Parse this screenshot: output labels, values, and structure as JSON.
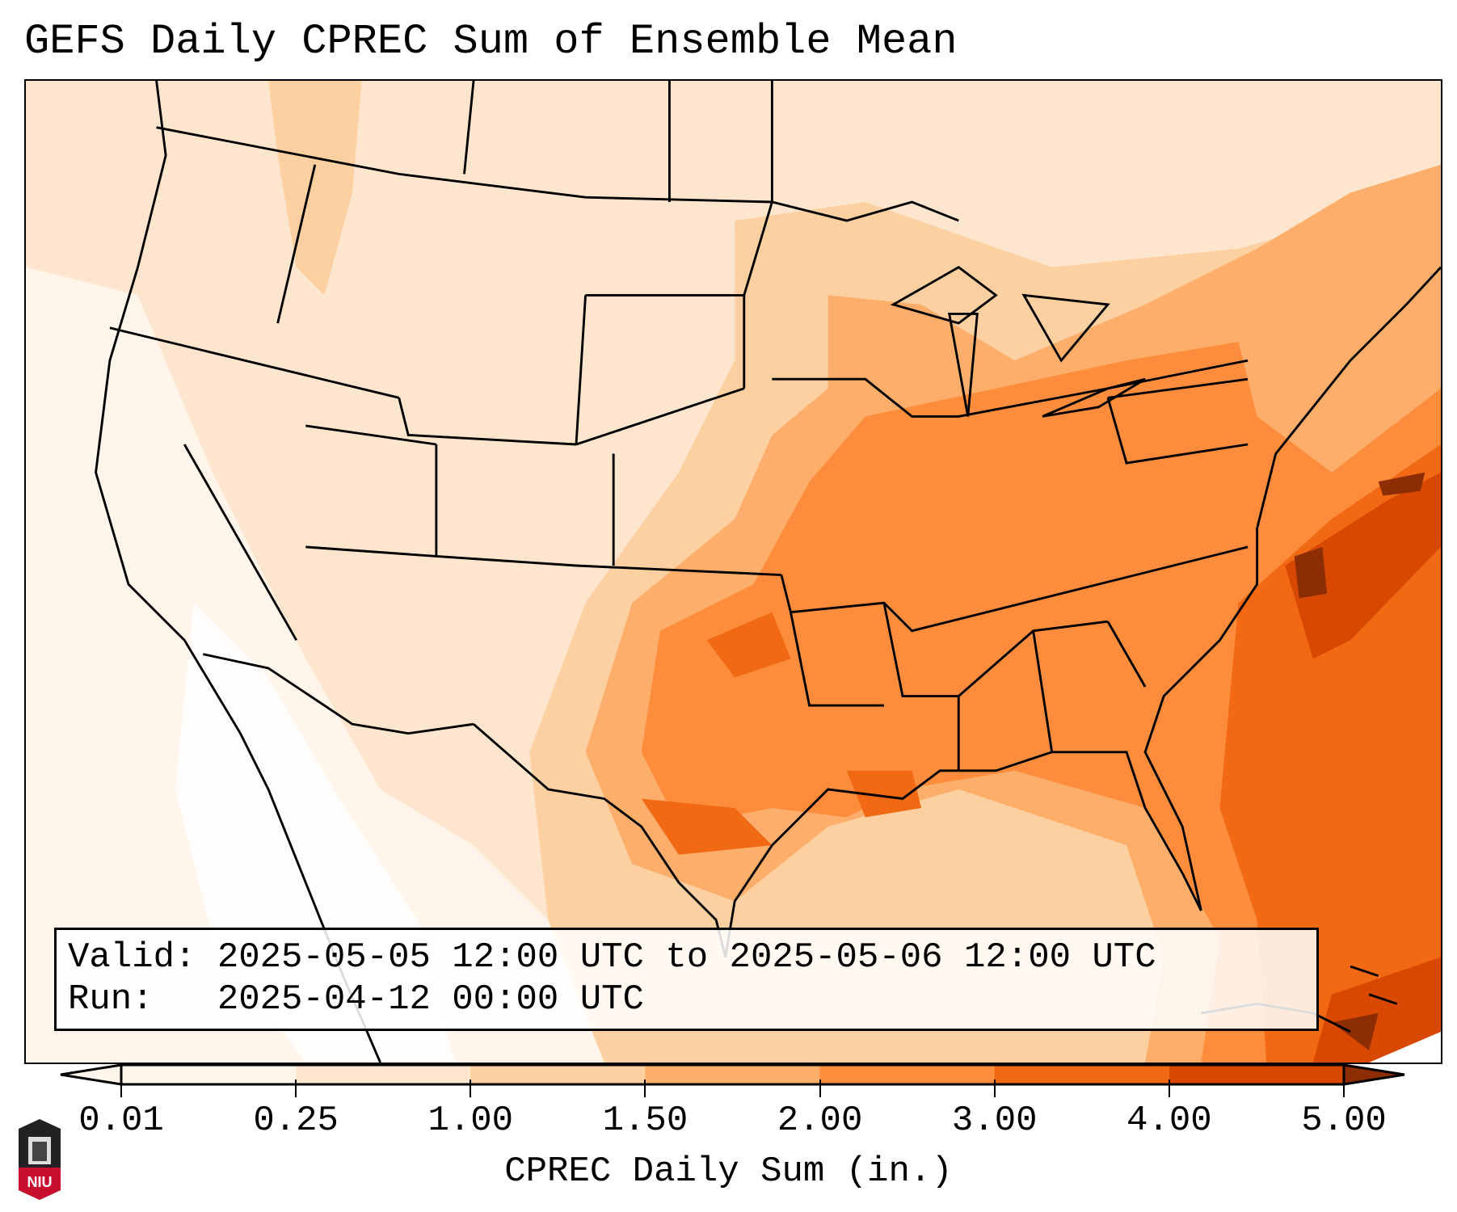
{
  "title": "GEFS Daily CPREC Sum of Ensemble Mean",
  "info": {
    "valid_line": "Valid: 2025-05-05 12:00 UTC to 2025-05-06 12:00 UTC",
    "run_line": "Run:   2025-04-12 00:00 UTC"
  },
  "colorbar": {
    "label": "CPREC Daily Sum (in.)",
    "ticks": [
      "0.01",
      "0.25",
      "1.00",
      "1.50",
      "2.00",
      "3.00",
      "4.00",
      "5.00"
    ],
    "colors": [
      "#fff5eb",
      "#fee6ce",
      "#fdd0a2",
      "#fdae6b",
      "#fd8d3c",
      "#f16913",
      "#d94801",
      "#8c2d04"
    ],
    "extend": "both"
  },
  "logo": {
    "text": "NIU"
  }
}
